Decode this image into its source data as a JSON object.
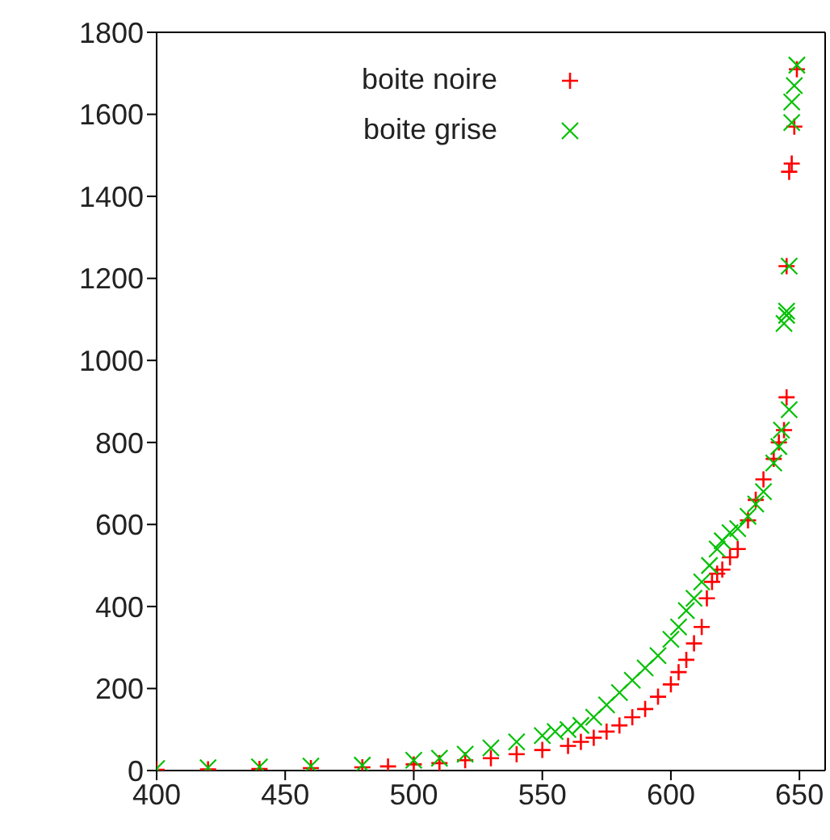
{
  "chart_data": {
    "type": "scatter",
    "xlim": [
      400,
      660
    ],
    "xticks": [
      400,
      450,
      500,
      550,
      600,
      650
    ],
    "ylim": [
      0,
      1800
    ],
    "yticks": [
      0,
      200,
      400,
      600,
      800,
      1000,
      1200,
      1400,
      1600,
      1800
    ],
    "legend": "top left",
    "series": [
      {
        "name": "boite noire",
        "color": "#ff0000",
        "marker": "plus",
        "x": [
          400,
          420,
          440,
          460,
          480,
          490,
          500,
          510,
          520,
          530,
          540,
          550,
          560,
          565,
          570,
          575,
          580,
          585,
          590,
          595,
          600,
          603,
          606,
          609,
          612,
          614,
          616,
          618,
          620,
          623,
          626,
          630,
          633,
          636,
          640,
          642,
          644,
          645,
          645,
          646,
          647,
          648,
          649
        ],
        "values": [
          2,
          3,
          4,
          6,
          8,
          10,
          15,
          18,
          25,
          30,
          40,
          50,
          60,
          70,
          80,
          95,
          110,
          130,
          150,
          180,
          210,
          240,
          270,
          310,
          350,
          420,
          460,
          480,
          490,
          520,
          540,
          610,
          660,
          710,
          760,
          800,
          830,
          910,
          1230,
          1460,
          1480,
          1570,
          1710
        ]
      },
      {
        "name": "boite grise",
        "color": "#00c000",
        "marker": "cross",
        "x": [
          400,
          420,
          440,
          460,
          480,
          500,
          510,
          520,
          530,
          540,
          550,
          555,
          560,
          565,
          570,
          575,
          580,
          585,
          590,
          595,
          600,
          603,
          606,
          609,
          612,
          615,
          618,
          620,
          623,
          626,
          630,
          633,
          636,
          640,
          642,
          643,
          644,
          645,
          645,
          646,
          646,
          647,
          647,
          648,
          649
        ],
        "values": [
          5,
          7,
          9,
          11,
          13,
          25,
          30,
          40,
          55,
          70,
          85,
          95,
          100,
          110,
          130,
          160,
          190,
          220,
          250,
          280,
          320,
          350,
          390,
          420,
          460,
          500,
          540,
          560,
          580,
          590,
          620,
          650,
          680,
          750,
          790,
          830,
          1090,
          1110,
          1120,
          880,
          1230,
          1580,
          1630,
          1670,
          1720
        ]
      }
    ]
  }
}
